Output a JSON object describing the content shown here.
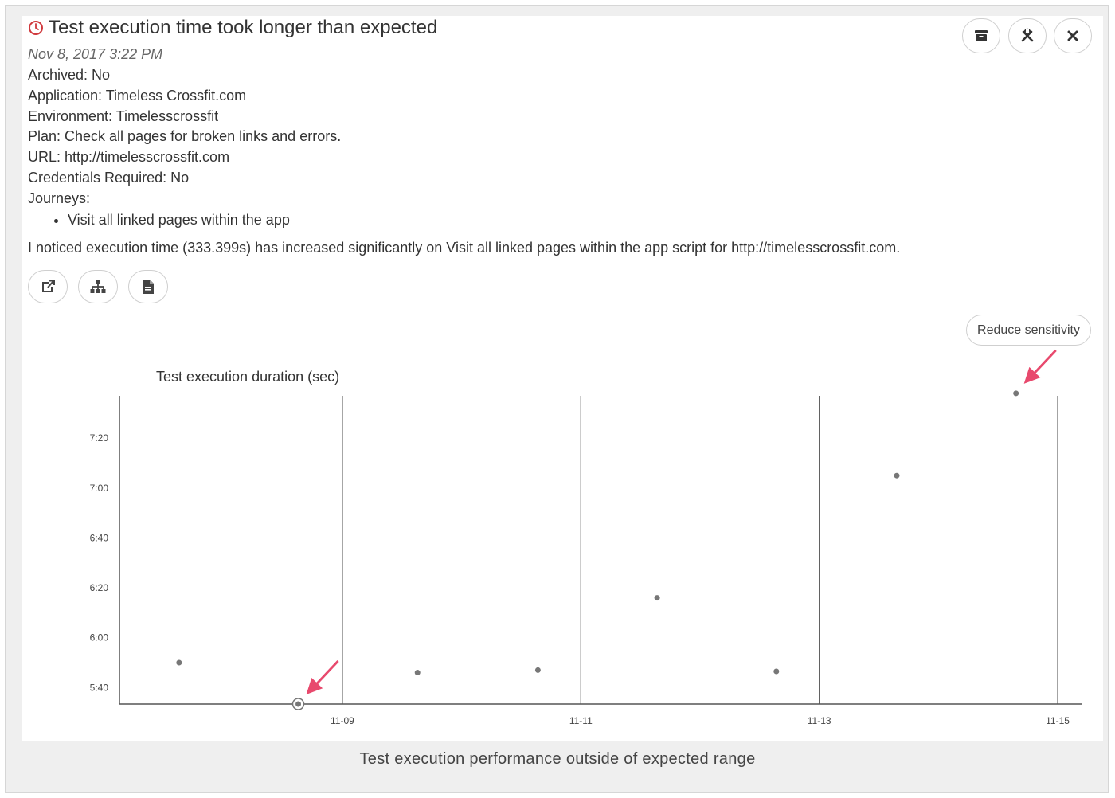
{
  "alert": {
    "title": "Test execution time took longer than expected",
    "date": "Nov 8, 2017 3:22 PM",
    "archived": "Archived: No",
    "application": "Application: Timeless Crossfit.com",
    "environment": "Environment: Timelesscrossfit",
    "plan": "Plan: Check all pages for broken links and errors.",
    "url": "URL: http://timelesscrossfit.com",
    "credentials": "Credentials Required: No",
    "journeys_label": "Journeys:",
    "journeys": [
      "Visit all linked pages within the app"
    ],
    "message": "I noticed execution time (333.399s) has increased significantly on Visit all linked pages within the app script for http://timelesscrossfit.com."
  },
  "header_actions": [
    {
      "icon": "archive-icon"
    },
    {
      "icon": "tools-icon"
    },
    {
      "icon": "close-icon"
    }
  ],
  "action_buttons": [
    {
      "icon": "external-link-icon"
    },
    {
      "icon": "sitemap-icon"
    },
    {
      "icon": "document-icon"
    }
  ],
  "reduce_sensitivity_label": "Reduce sensitivity",
  "caption": "Test execution performance outside of expected range",
  "colors": {
    "accent_red": "#d0393d",
    "arrow_pink": "#e8496d",
    "point_gray": "#777777",
    "axis": "#555555"
  },
  "chart_data": {
    "type": "scatter",
    "title": "Test execution duration (sec)",
    "xlabel": "",
    "ylabel": "",
    "x_ticks": [
      "11-09",
      "11-11",
      "11-13",
      "11-15"
    ],
    "y_ticks": [
      "5:40",
      "6:00",
      "6:20",
      "6:40",
      "7:00",
      "7:20"
    ],
    "ylim_seconds": [
      333.4,
      457
    ],
    "xlim_days": [
      -1.87,
      6.2
    ],
    "grid": "vertical lines at x ticks",
    "x_origin_date": "11-09",
    "points": [
      {
        "day": -1.37,
        "seconds": 350
      },
      {
        "day": -0.37,
        "seconds": 333.4
      },
      {
        "day": 0.63,
        "seconds": 346
      },
      {
        "day": 1.64,
        "seconds": 347
      },
      {
        "day": 2.64,
        "seconds": 376
      },
      {
        "day": 3.64,
        "seconds": 346.5
      },
      {
        "day": 4.65,
        "seconds": 425
      },
      {
        "day": 5.65,
        "seconds": 458
      }
    ],
    "highlighted": [
      1,
      7
    ]
  }
}
